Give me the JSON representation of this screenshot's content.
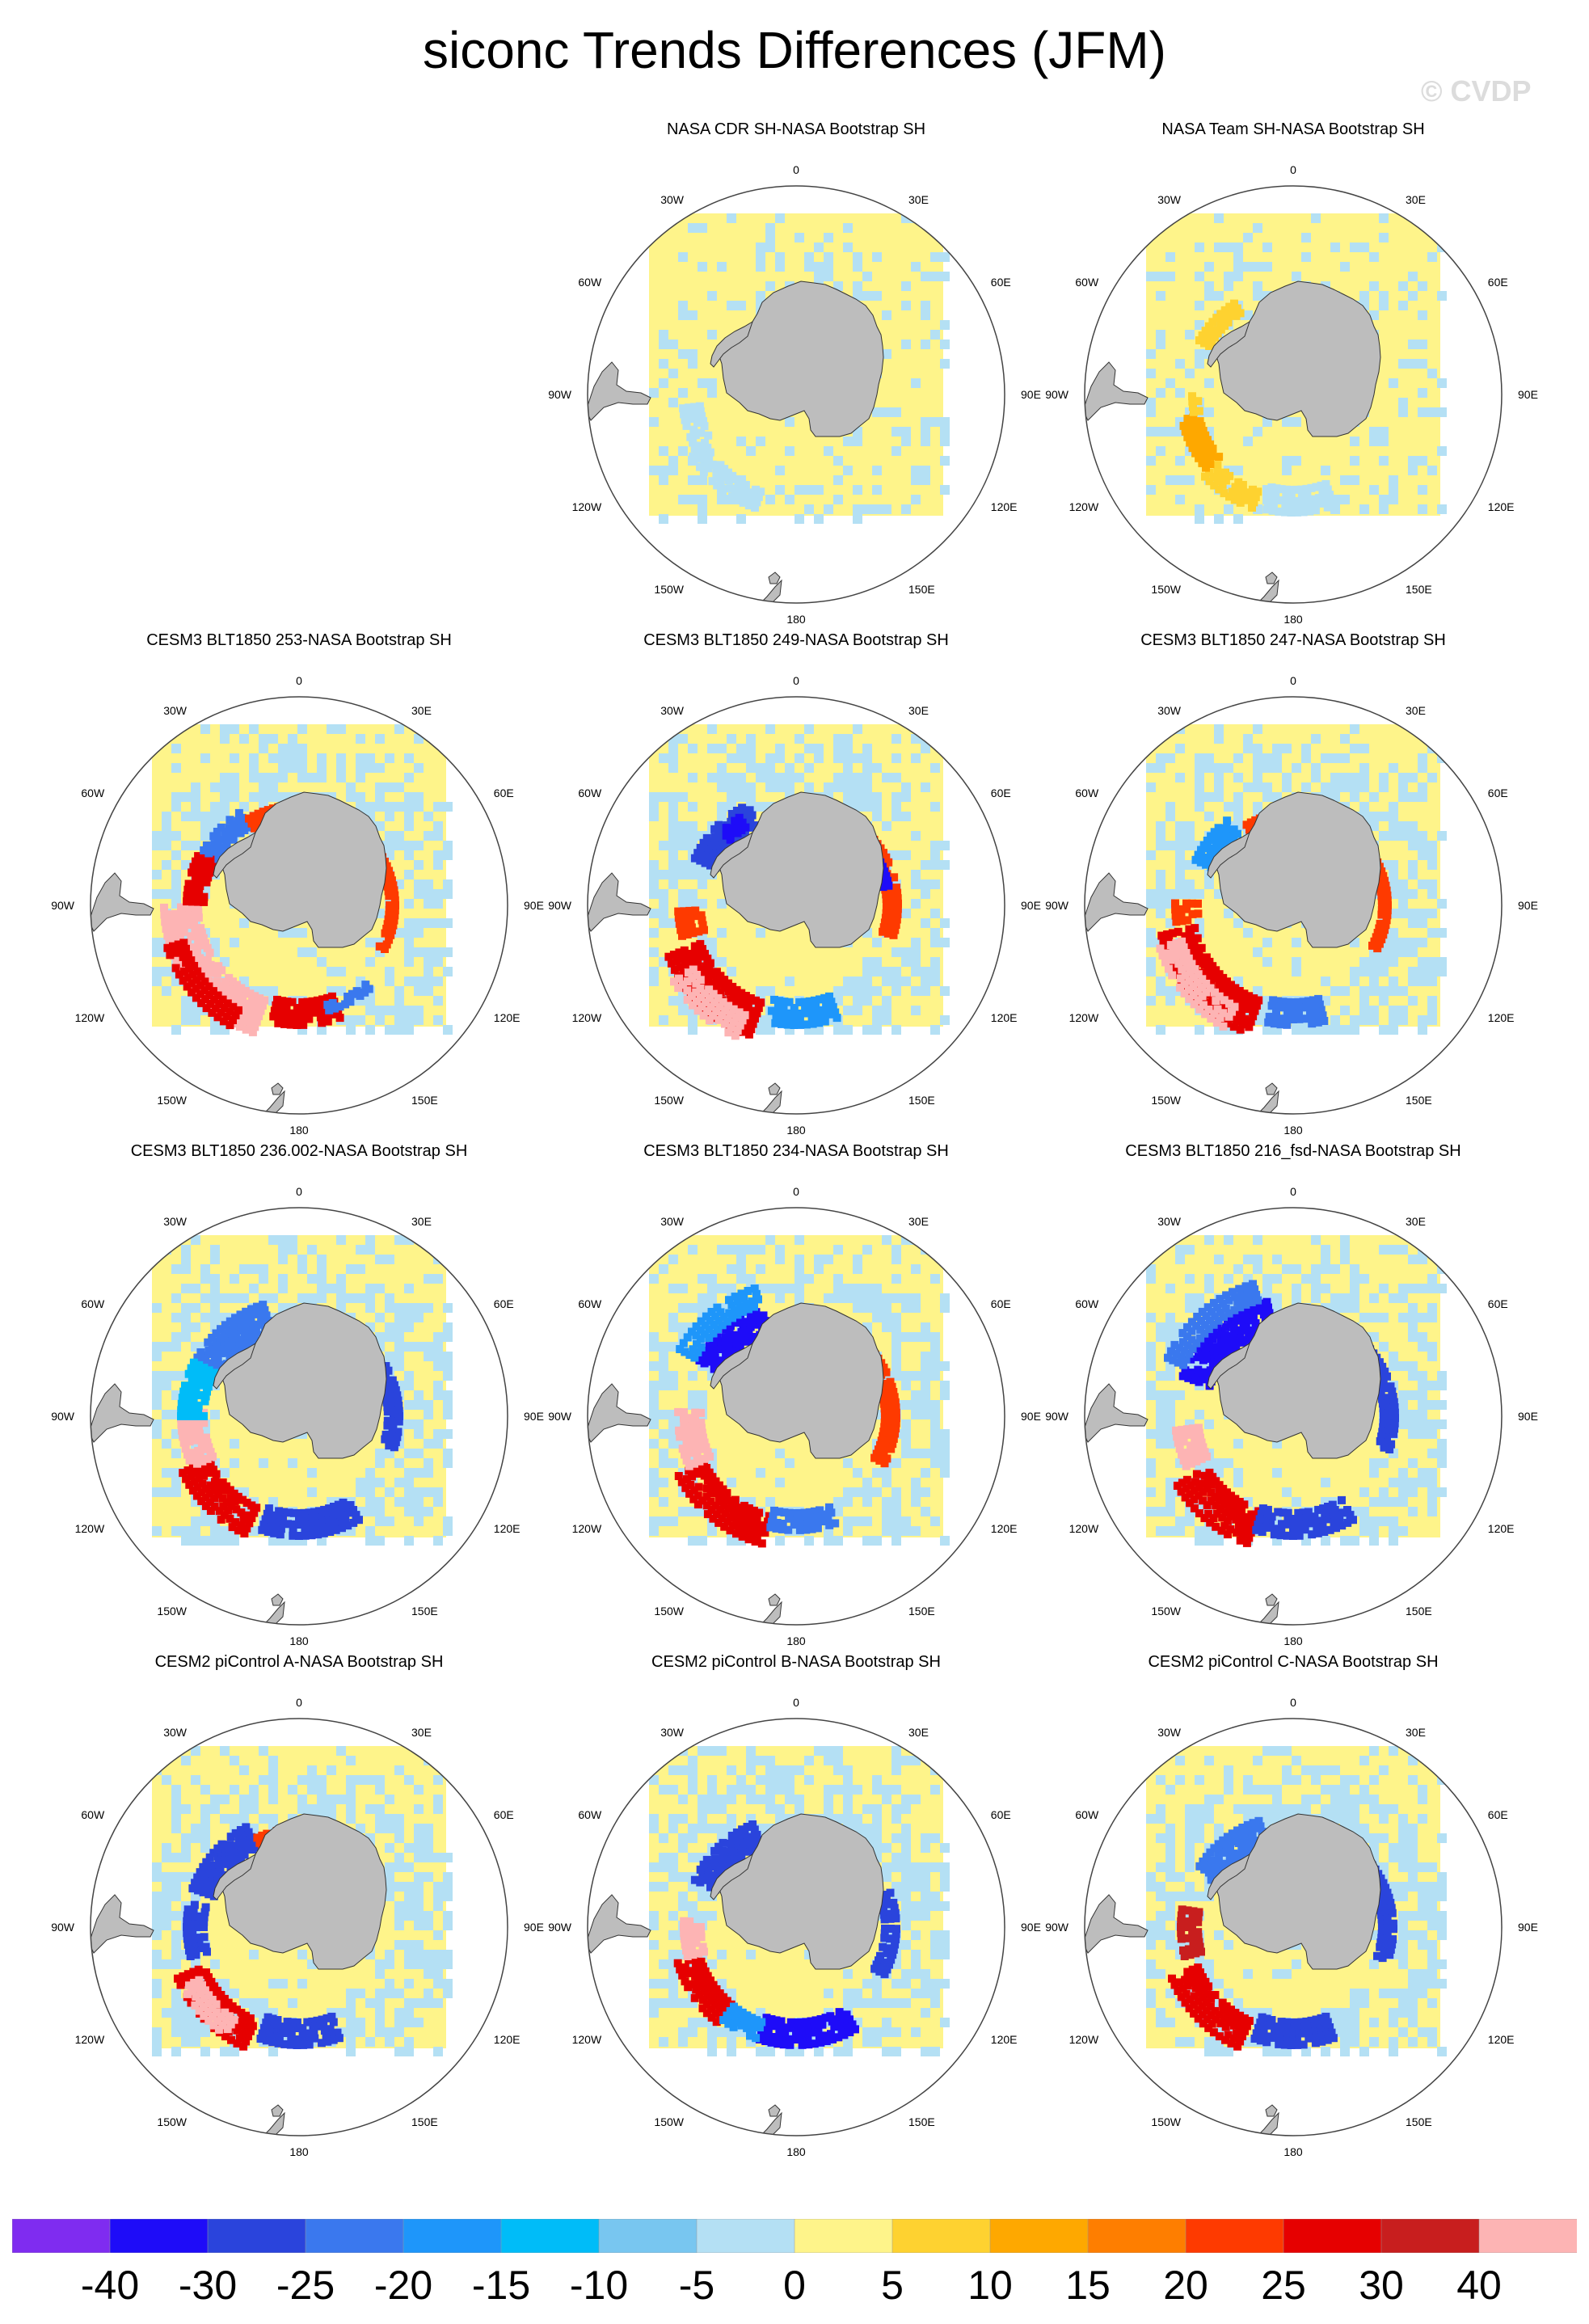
{
  "title": "siconc Trends Differences (JFM)",
  "watermark": "© CVDP",
  "chart_data": {
    "type": "heatmap",
    "title": "siconc Trends Differences (JFM)",
    "projection": "south-polar-stereographic",
    "longitude_labels": [
      "0",
      "30E",
      "60E",
      "90E",
      "120E",
      "150E",
      "180",
      "150W",
      "120W",
      "90W",
      "60W",
      "30W"
    ],
    "colorbar": {
      "labels": [
        "-40",
        "-30",
        "-25",
        "-20",
        "-15",
        "-10",
        "-5",
        "0",
        "5",
        "10",
        "15",
        "20",
        "25",
        "30",
        "40"
      ],
      "colors": [
        "#7f2cf0",
        "#1e0cf8",
        "#2a44dc",
        "#3a78ee",
        "#1e96fa",
        "#00bcf8",
        "#78c6f0",
        "#b4e0f4",
        "#fef48a",
        "#fed230",
        "#fea800",
        "#fe7e00",
        "#fe3a00",
        "#e60000",
        "#c81e1e",
        "#fdb4b4"
      ]
    },
    "panels": [
      {
        "title": "NASA CDR SH-NASA Bootstrap SH",
        "pattern": "obs"
      },
      {
        "title": "NASA Team SH-NASA Bootstrap SH",
        "pattern": "obs2"
      },
      {
        "title": "CESM3 BLT1850 253-NASA Bootstrap SH",
        "pattern": "m253"
      },
      {
        "title": "CESM3 BLT1850 249-NASA Bootstrap SH",
        "pattern": "m249"
      },
      {
        "title": "CESM3 BLT1850 247-NASA Bootstrap SH",
        "pattern": "m247"
      },
      {
        "title": "CESM3 BLT1850 236.002-NASA Bootstrap SH",
        "pattern": "m236"
      },
      {
        "title": "CESM3 BLT1850 234-NASA Bootstrap SH",
        "pattern": "m234"
      },
      {
        "title": "CESM3 BLT1850 216_fsd-NASA Bootstrap SH",
        "pattern": "m216"
      },
      {
        "title": "CESM2 piControl A-NASA Bootstrap SH",
        "pattern": "pcA"
      },
      {
        "title": "CESM2 piControl B-NASA Bootstrap SH",
        "pattern": "pcB"
      },
      {
        "title": "CESM2 piControl C-NASA Bootstrap SH",
        "pattern": "pcC"
      }
    ]
  }
}
